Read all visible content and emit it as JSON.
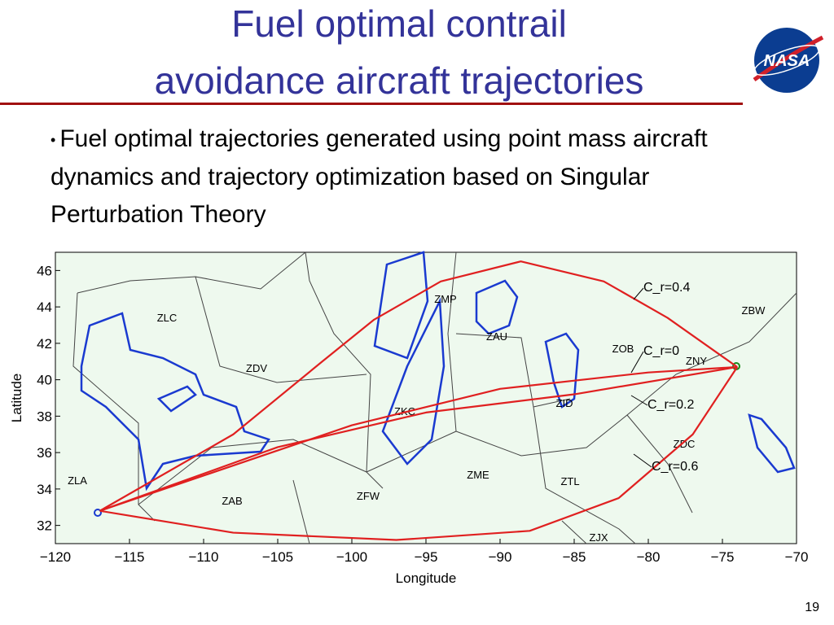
{
  "title_line1": "Fuel optimal contrail",
  "title_line2": "avoidance aircraft trajectories",
  "logo": "NASA",
  "bullet": "Fuel optimal trajectories generated using point mass aircraft dynamics and trajectory optimization based on Singular Perturbation Theory",
  "page_number": "19",
  "chart_data": {
    "type": "line",
    "xlabel": "Longitude",
    "ylabel": "Latitude",
    "xlim": [
      -120,
      -70
    ],
    "ylim": [
      31,
      47
    ],
    "xticks": [
      {
        "value": -120,
        "label": "−120"
      },
      {
        "value": -115,
        "label": "−115"
      },
      {
        "value": -110,
        "label": "−110"
      },
      {
        "value": -105,
        "label": "−105"
      },
      {
        "value": -100,
        "label": "−100"
      },
      {
        "value": -95,
        "label": "−95"
      },
      {
        "value": -90,
        "label": "−90"
      },
      {
        "value": -85,
        "label": "−85"
      },
      {
        "value": -80,
        "label": "−80"
      },
      {
        "value": -75,
        "label": "−75"
      },
      {
        "value": -70,
        "label": "−70"
      }
    ],
    "yticks": [
      32,
      34,
      36,
      38,
      40,
      42,
      44,
      46
    ],
    "series": [
      {
        "name": "C_r=0.4",
        "color": "#e02020",
        "x": [
          -117,
          -108,
          -102,
          -98.5,
          -94,
          -88.6,
          -83,
          -78.7,
          -74
        ],
        "y": [
          32.8,
          37,
          41,
          43.3,
          45.4,
          46.5,
          45.4,
          43.4,
          40.7
        ]
      },
      {
        "name": "C_r=0",
        "color": "#e02020",
        "x": [
          -117,
          -100,
          -90,
          -80,
          -74
        ],
        "y": [
          32.8,
          37.5,
          39.5,
          40.4,
          40.7
        ]
      },
      {
        "name": "C_r=0.2",
        "color": "#e02020",
        "x": [
          -117,
          -105,
          -95,
          -85,
          -74
        ],
        "y": [
          32.8,
          36.3,
          38.2,
          39.2,
          40.7
        ]
      },
      {
        "name": "C_r=0.6",
        "color": "#e02020",
        "x": [
          -117,
          -108,
          -97,
          -88,
          -82,
          -77,
          -74
        ],
        "y": [
          32.8,
          31.6,
          31.2,
          31.7,
          33.5,
          37,
          40.7
        ]
      }
    ],
    "regions": [
      "ZLC",
      "ZDV",
      "ZMP",
      "ZAU",
      "ZOB",
      "ZNY",
      "ZBW",
      "ZID",
      "ZKC",
      "ZDC",
      "ZLA",
      "ZAB",
      "ZFW",
      "ZME",
      "ZTL",
      "ZJX"
    ]
  }
}
